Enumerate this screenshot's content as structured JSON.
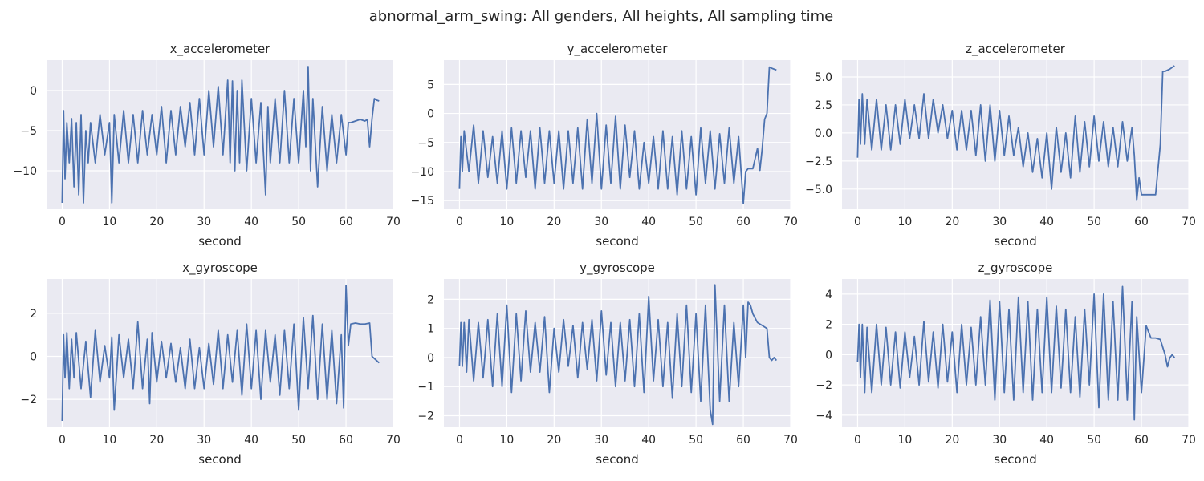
{
  "figure": {
    "suptitle": "abnormal_arm_swing: All genders, All heights, All sampling time"
  },
  "colors": {
    "line": "#4c72b0",
    "panel_background": "#eaeaf2",
    "grid": "#ffffff",
    "text": "#262626"
  },
  "chart_data": [
    {
      "type": "line",
      "title": "x_accelerometer",
      "xlabel": "second",
      "ylabel": "",
      "xlim": [
        -3.3,
        70
      ],
      "ylim": [
        -14.8,
        3.8
      ],
      "xticks": [
        0,
        10,
        20,
        30,
        40,
        50,
        60,
        70
      ],
      "yticks": [
        0,
        -5,
        -10
      ],
      "grid": true,
      "series": [
        {
          "x": [
            0,
            0.3,
            0.6,
            1,
            1.5,
            2,
            2.5,
            3,
            3.5,
            4,
            4.5,
            5,
            5.5,
            6,
            7,
            8,
            9,
            10,
            10.5,
            11,
            12,
            13,
            14,
            15,
            16,
            17,
            18,
            19,
            20,
            21,
            22,
            23,
            24,
            25,
            26,
            27,
            28,
            29,
            30,
            31,
            32,
            33,
            34,
            35,
            35.5,
            36,
            36.5,
            37,
            37.5,
            38,
            39,
            40,
            41,
            42,
            43,
            43.5,
            44,
            45,
            46,
            47,
            48,
            49,
            50,
            51,
            51.5,
            52,
            52.5,
            53,
            54,
            55,
            56,
            57,
            58,
            59,
            60,
            60.5,
            61,
            62,
            63,
            64,
            64.5,
            65,
            65.5,
            66,
            66.5,
            67
          ],
          "values": [
            -14,
            -2.5,
            -11,
            -4,
            -9,
            -3.5,
            -12,
            -4,
            -13,
            -3,
            -14,
            -5,
            -9,
            -4,
            -9,
            -3,
            -8,
            -4,
            -14,
            -3,
            -9,
            -2.5,
            -9,
            -3,
            -9,
            -2.5,
            -8,
            -3,
            -8,
            -2,
            -9,
            -2.5,
            -8,
            -2,
            -7,
            -1.5,
            -8,
            -1,
            -8,
            0,
            -7,
            0.5,
            -8,
            1.3,
            -9,
            1.2,
            -10,
            0,
            -9,
            1.3,
            -10,
            -1,
            -9,
            -1.5,
            -13,
            -2,
            -9,
            -1,
            -9,
            0,
            -9,
            -1,
            -9,
            0,
            -7,
            3,
            -10,
            -1,
            -12,
            -2,
            -10,
            -3,
            -9,
            -3,
            -8,
            -4,
            -4,
            -3.8,
            -3.6,
            -3.8,
            -3.6,
            -7,
            -3.5,
            -1,
            -1.2,
            -1.3
          ]
        }
      ]
    },
    {
      "type": "line",
      "title": "y_accelerometer",
      "xlabel": "second",
      "ylabel": "",
      "xlim": [
        -3.3,
        70
      ],
      "ylim": [
        -16.5,
        9.2
      ],
      "xticks": [
        0,
        10,
        20,
        30,
        40,
        50,
        60,
        70
      ],
      "yticks": [
        5,
        0,
        -5,
        -10,
        -15
      ],
      "grid": true,
      "series": [
        {
          "x": [
            0,
            0.3,
            0.6,
            1,
            2,
            3,
            4,
            5,
            6,
            7,
            8,
            9,
            10,
            11,
            12,
            13,
            14,
            15,
            16,
            17,
            18,
            19,
            20,
            21,
            22,
            23,
            24,
            25,
            26,
            27,
            28,
            29,
            30,
            31,
            32,
            33,
            34,
            35,
            36,
            37,
            38,
            39,
            40,
            41,
            42,
            43,
            44,
            45,
            46,
            47,
            48,
            49,
            50,
            51,
            52,
            53,
            54,
            55,
            56,
            57,
            58,
            59,
            60,
            60.5,
            61,
            62,
            63,
            63.5,
            64,
            64.5,
            65,
            65.5,
            66,
            67
          ],
          "values": [
            -13,
            -4,
            -10,
            -3,
            -10,
            -2,
            -12,
            -3,
            -11,
            -4,
            -12,
            -3,
            -13,
            -2.5,
            -12,
            -3,
            -11,
            -3,
            -13,
            -2.5,
            -12,
            -3,
            -12,
            -3,
            -13,
            -3,
            -12,
            -2.5,
            -13,
            -1,
            -12,
            0,
            -13,
            -2,
            -12,
            -0.5,
            -13,
            -2,
            -11,
            -3,
            -13,
            -5,
            -12,
            -4,
            -13,
            -3,
            -13,
            -4,
            -14,
            -3,
            -13,
            -4,
            -14,
            -2.5,
            -12,
            -3,
            -13,
            -3.5,
            -12,
            -2.5,
            -12,
            -4,
            -15.5,
            -10,
            -9.5,
            -9.5,
            -6,
            -9.8,
            -6,
            -1,
            0,
            8,
            7.8,
            7.5
          ]
        }
      ]
    },
    {
      "type": "line",
      "title": "z_accelerometer",
      "xlabel": "second",
      "ylabel": "",
      "xlim": [
        -3.3,
        70
      ],
      "ylim": [
        -6.8,
        6.5
      ],
      "xticks": [
        0,
        10,
        20,
        30,
        40,
        50,
        60,
        70
      ],
      "yticks": [
        5.0,
        2.5,
        0.0,
        -2.5,
        -5.0
      ],
      "grid": true,
      "series": [
        {
          "x": [
            0,
            0.3,
            0.6,
            1,
            1.5,
            2,
            3,
            4,
            5,
            6,
            7,
            8,
            9,
            10,
            11,
            12,
            13,
            14,
            15,
            16,
            17,
            18,
            19,
            20,
            21,
            22,
            23,
            24,
            25,
            26,
            27,
            28,
            29,
            30,
            31,
            32,
            33,
            34,
            35,
            36,
            37,
            38,
            39,
            40,
            41,
            42,
            43,
            44,
            45,
            46,
            47,
            48,
            49,
            50,
            51,
            52,
            53,
            54,
            55,
            56,
            57,
            58,
            58.5,
            59,
            59.5,
            60,
            61,
            62,
            63,
            64,
            64.5,
            65,
            66,
            67
          ],
          "values": [
            -2.2,
            3,
            -1,
            3.5,
            -1,
            3,
            -1.5,
            3,
            -1.5,
            2.5,
            -1.5,
            2.5,
            -1,
            3,
            -0.5,
            2.5,
            -0.5,
            3.5,
            -0.5,
            3,
            0,
            2.5,
            -0.5,
            2,
            -1.5,
            2,
            -1.5,
            2,
            -2,
            2.5,
            -2.5,
            2.5,
            -2.5,
            2,
            -2,
            1.5,
            -2,
            0.5,
            -3,
            0,
            -3.5,
            -0.5,
            -4,
            0,
            -5,
            0.5,
            -3.5,
            0,
            -4,
            1.5,
            -3.5,
            1,
            -3,
            1.5,
            -2.5,
            1,
            -3,
            0.5,
            -3,
            1,
            -2.5,
            0.5,
            -2,
            -6,
            -4,
            -5.5,
            -5.5,
            -5.5,
            -5.5,
            -1,
            5.5,
            5.5,
            5.7,
            6
          ]
        }
      ]
    },
    {
      "type": "line",
      "title": "x_gyroscope",
      "xlabel": "second",
      "ylabel": "",
      "xlim": [
        -3.3,
        70
      ],
      "ylim": [
        -3.3,
        3.6
      ],
      "xticks": [
        0,
        10,
        20,
        30,
        40,
        50,
        60,
        70
      ],
      "yticks": [
        2,
        0,
        -2
      ],
      "grid": true,
      "series": [
        {
          "x": [
            0,
            0.3,
            0.6,
            1,
            1.5,
            2,
            2.5,
            3,
            4,
            5,
            6,
            7,
            8,
            9,
            10,
            10.5,
            11,
            12,
            13,
            14,
            15,
            16,
            17,
            18,
            18.5,
            19,
            20,
            21,
            22,
            23,
            24,
            25,
            26,
            27,
            28,
            29,
            30,
            31,
            32,
            33,
            34,
            35,
            36,
            37,
            38,
            39,
            40,
            41,
            42,
            43,
            44,
            45,
            46,
            47,
            48,
            49,
            50,
            51,
            52,
            53,
            54,
            55,
            56,
            57,
            58,
            59,
            59.5,
            60,
            60.5,
            61,
            62,
            63,
            64,
            65,
            65.5,
            66,
            66.5,
            67
          ],
          "values": [
            -3,
            1,
            -1,
            1.1,
            -1.5,
            0.8,
            -1,
            1.1,
            -1.5,
            0.7,
            -1.9,
            1.2,
            -1.2,
            0.5,
            -1,
            0.9,
            -2.5,
            1,
            -1,
            0.8,
            -1.5,
            1.6,
            -1.5,
            0.8,
            -2.2,
            1.1,
            -1.2,
            0.7,
            -1,
            0.6,
            -1.2,
            0.4,
            -1.5,
            0.8,
            -1.5,
            0.4,
            -1.5,
            0.6,
            -1.3,
            1.2,
            -1.5,
            1,
            -1.2,
            1.2,
            -1.8,
            1.5,
            -1.5,
            1.2,
            -2,
            1.2,
            -1.2,
            1,
            -1.8,
            1.2,
            -1.5,
            1.5,
            -2.5,
            1.8,
            -1.5,
            1.9,
            -2,
            1.5,
            -2,
            1.2,
            -2.2,
            1,
            -2.4,
            3.3,
            0.5,
            1.5,
            1.55,
            1.5,
            1.5,
            1.55,
            0,
            -0.1,
            -0.2,
            -0.3
          ]
        }
      ]
    },
    {
      "type": "line",
      "title": "y_gyroscope",
      "xlabel": "second",
      "ylabel": "",
      "xlim": [
        -3.3,
        70
      ],
      "ylim": [
        -2.4,
        2.7
      ],
      "xticks": [
        0,
        10,
        20,
        30,
        40,
        50,
        60,
        70
      ],
      "yticks": [
        2,
        1,
        0,
        -1,
        -2
      ],
      "grid": true,
      "series": [
        {
          "x": [
            0,
            0.3,
            0.6,
            1,
            1.5,
            2,
            3,
            4,
            5,
            6,
            7,
            8,
            9,
            10,
            11,
            12,
            13,
            14,
            15,
            16,
            17,
            18,
            19,
            20,
            21,
            22,
            23,
            24,
            25,
            26,
            27,
            28,
            29,
            30,
            31,
            32,
            33,
            34,
            35,
            36,
            37,
            38,
            39,
            40,
            41,
            42,
            43,
            44,
            45,
            46,
            47,
            48,
            49,
            50,
            51,
            52,
            53,
            53.5,
            54,
            55,
            56,
            57,
            58,
            59,
            60,
            60.5,
            61,
            61.5,
            62,
            63,
            64,
            65,
            65.5,
            66,
            66.5,
            67
          ],
          "values": [
            -0.3,
            1.2,
            -0.3,
            1.2,
            -0.5,
            1.3,
            -0.8,
            1.2,
            -0.7,
            1.3,
            -1,
            1.5,
            -1,
            1.8,
            -1.2,
            1.5,
            -0.8,
            1.6,
            -0.5,
            1.2,
            -0.5,
            1.4,
            -1.2,
            1,
            -0.5,
            1.3,
            -0.3,
            1.1,
            -0.7,
            1.2,
            -0.4,
            1.3,
            -0.8,
            1.6,
            -0.6,
            1.2,
            -1,
            1.2,
            -0.8,
            1.3,
            -1,
            1.5,
            -1.2,
            2.1,
            -0.8,
            1.3,
            -1,
            1.2,
            -1.4,
            1.5,
            -1,
            1.8,
            -1.2,
            1.5,
            -1.5,
            1.8,
            -1.8,
            -2.3,
            2.5,
            -1.5,
            1.8,
            -1.5,
            1.2,
            -1,
            1.8,
            0,
            1.9,
            1.8,
            1.5,
            1.2,
            1.1,
            1,
            0,
            -0.1,
            0,
            -0.1
          ]
        }
      ]
    },
    {
      "type": "line",
      "title": "z_gyroscope",
      "xlabel": "second",
      "ylabel": "",
      "xlim": [
        -3.3,
        70
      ],
      "ylim": [
        -4.8,
        5.0
      ],
      "xticks": [
        0,
        10,
        20,
        30,
        40,
        50,
        60,
        70
      ],
      "yticks": [
        4,
        2,
        0,
        -2,
        -4
      ],
      "grid": true,
      "series": [
        {
          "x": [
            0,
            0.3,
            0.6,
            1,
            1.5,
            2,
            3,
            4,
            5,
            6,
            7,
            8,
            9,
            10,
            11,
            12,
            13,
            14,
            15,
            16,
            17,
            18,
            19,
            20,
            21,
            22,
            23,
            24,
            25,
            26,
            27,
            28,
            29,
            30,
            31,
            32,
            33,
            34,
            35,
            36,
            37,
            38,
            39,
            40,
            41,
            42,
            43,
            44,
            45,
            46,
            47,
            48,
            49,
            50,
            51,
            52,
            53,
            54,
            55,
            56,
            57,
            58,
            58.5,
            59,
            60,
            61,
            62,
            63,
            64,
            65,
            65.5,
            66,
            66.5,
            67
          ],
          "values": [
            -0.5,
            2,
            -1.5,
            2,
            -2.5,
            1.8,
            -2.5,
            2,
            -2,
            1.8,
            -2,
            1.5,
            -2.2,
            1.5,
            -1.5,
            1.2,
            -2,
            2.2,
            -1.8,
            1.5,
            -2.2,
            2,
            -1.8,
            1.5,
            -2.5,
            2,
            -2,
            1.8,
            -2,
            2.5,
            -2,
            3.6,
            -3,
            3.5,
            -2.5,
            3,
            -3,
            3.8,
            -2.5,
            3.5,
            -3,
            3,
            -2.5,
            3.8,
            -2.5,
            3.2,
            -2.2,
            3,
            -2.5,
            2.5,
            -2.8,
            3,
            -2,
            4,
            -3.5,
            4,
            -3,
            3.5,
            -3,
            4.5,
            -3,
            3.5,
            -4.3,
            2.5,
            -2.5,
            1.9,
            1.1,
            1.1,
            1,
            0,
            -0.8,
            -0.2,
            0,
            -0.2
          ]
        }
      ]
    }
  ]
}
